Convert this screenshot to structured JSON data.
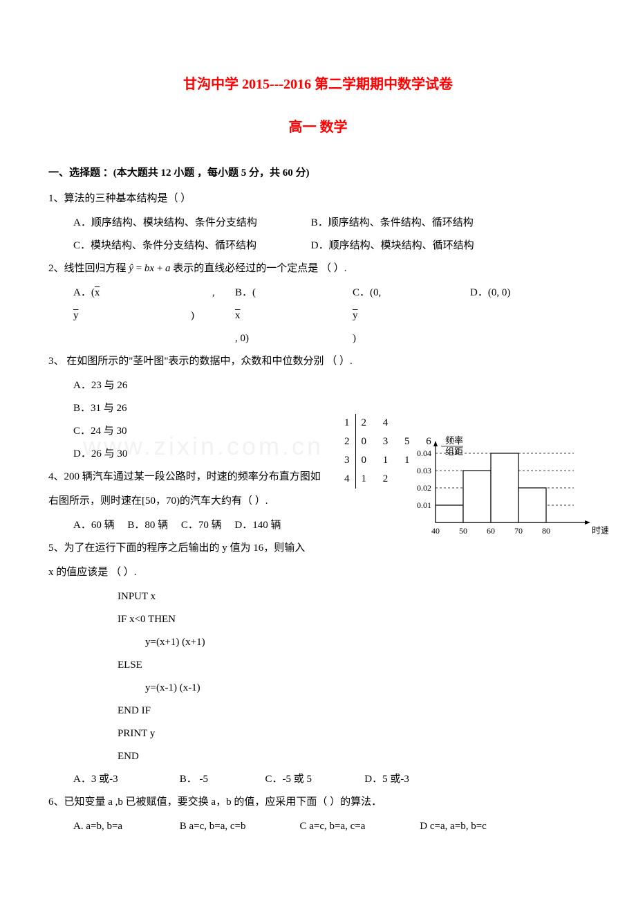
{
  "title": "甘沟中学 2015---2016 第二学期期中数学试卷",
  "subtitle": "高一   数学",
  "section1_header": "一、选择题 ：(本大题共 12 小题 ，每小题 5 分，共 60 分)",
  "q1": {
    "text": "1、算法的三种基本结构是（          ）",
    "optA": "A．顺序结构、模块结构、条件分支结构",
    "optB": "B．顺序结构、条件结构、循环结构",
    "optC": "C．模块结构、条件分支结构、循环结构",
    "optD": "D．顺序结构、模块结构、循环结构"
  },
  "q2": {
    "text": "2、线性回归方程 ŷ = bx + a 表示的直线必经过的一个定点是      （          ）.",
    "optA": "A．(x̄, ȳ)",
    "optB": "B．(x̄, 0)",
    "optC": "C．(0, ȳ)",
    "optD": "D．(0, 0)"
  },
  "q3": {
    "text": "3、 在如图所示的\"茎叶图\"表示的数据中，众数和中位数分别        （          ）.",
    "optA": "A．23 与 26",
    "optB": "B．31 与 26",
    "optC": "C．24 与 30",
    "optD": "D．26 与 30",
    "stems": [
      "1",
      "2",
      "3",
      "4"
    ],
    "leaves": [
      "2  4",
      "0  3  5  6",
      "0  1  1",
      "1  2"
    ]
  },
  "q4": {
    "line1": "4、200 辆汽车通过某一段公路时，时速的频率分布直方图如",
    "line2": "右图所示，则时速在[50，70)的汽车大约有（      ）.",
    "optA": "A．60 辆",
    "optB": "B．80 辆",
    "optC": "C．70 辆",
    "optD": "D．140 辆"
  },
  "q5": {
    "line1": "5、为了在运行下面的程序之后输出的 y 值为 16，则输入",
    "line2": "x 的值应该是                （          ）.",
    "code1": "INPUT x",
    "code2": "IF   x<0   THEN",
    "code3": "y=(x+1)   (x+1)",
    "code4": "ELSE",
    "code5": "y=(x-1)   (x-1)",
    "code6": "END IF",
    "code7": "PRINT y",
    "code8": "END",
    "optA": "A．3 或-3",
    "optB": "B． -5",
    "optC": "C．-5 或 5",
    "optD": "D．5 或-3"
  },
  "q6": {
    "text": "6、已知变量 a ,b 已被赋值，要交换 a，b 的值，应采用下面（        ）的算法．",
    "optA": "A.   a=b,   b=a",
    "optB": "B   a=c, b=a, c=b",
    "optC": "C   a=c, b=a, c=a",
    "optD": "D   c=a, a=b, b=c"
  },
  "histogram": {
    "ylabel_top": "频率",
    "ylabel_bottom": "组距",
    "xlabel": "时速(km)",
    "yticks": [
      "0.01",
      "0.02",
      "0.03",
      "0.04"
    ],
    "xticks": [
      "40",
      "50",
      "60",
      "70",
      "80"
    ],
    "heights": [
      0.01,
      0.03,
      0.04,
      0.02
    ],
    "axis_color": "#000000",
    "bar_stroke": "#000000",
    "bar_fill": "#ffffff",
    "grid_dash": "3,3"
  },
  "watermark": "www.zixin.com.cn"
}
